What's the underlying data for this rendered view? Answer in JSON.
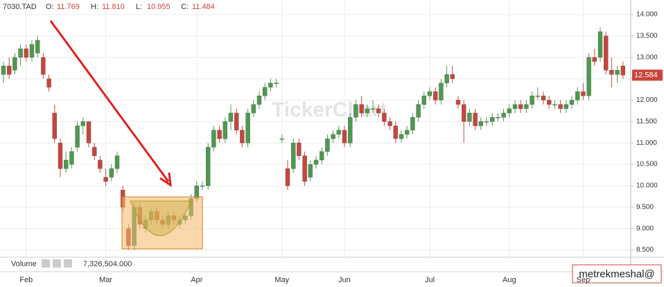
{
  "chart_data": {
    "type": "candlestick",
    "symbol": "7030.TAD",
    "ohlc_legend": [
      {
        "label": "O:",
        "value": "11.769"
      },
      {
        "label": "H:",
        "value": "11.810"
      },
      {
        "label": "L:",
        "value": "10.955"
      },
      {
        "label": "C:",
        "value": "11.484"
      }
    ],
    "volume_label": "Volume",
    "volume_value": "7,326,504.000",
    "watermark": "TickerChart",
    "annotation": "metrekmeshal@",
    "up_color": "#4e9a4e",
    "down_color": "#c9453c",
    "ylim": [
      8.38,
      14.21
    ],
    "yticks": [
      {
        "value": 8.5,
        "label": "8.500"
      },
      {
        "value": 9,
        "label": "9.000"
      },
      {
        "value": 9.5,
        "label": "9.500"
      },
      {
        "value": 10,
        "label": "10.000"
      },
      {
        "value": 10.5,
        "label": "10.500"
      },
      {
        "value": 11,
        "label": "11.000"
      },
      {
        "value": 11.5,
        "label": "11.500"
      },
      {
        "value": 12,
        "label": "12.000"
      },
      {
        "value": 12.5,
        "label": "12.500"
      },
      {
        "value": 13,
        "label": "13.000"
      },
      {
        "value": 13.5,
        "label": "13.500"
      },
      {
        "value": 14,
        "label": "14.000"
      }
    ],
    "grid": true,
    "categories": [
      null,
      null,
      null,
      null,
      "Feb",
      null,
      null,
      null,
      null,
      null,
      null,
      null,
      null,
      null,
      null,
      null,
      null,
      null,
      "Mar",
      null,
      null,
      null,
      null,
      null,
      null,
      null,
      null,
      null,
      null,
      null,
      null,
      null,
      null,
      null,
      "Apr",
      null,
      null,
      null,
      null,
      null,
      null,
      null,
      null,
      null,
      null,
      null,
      null,
      null,
      null,
      "May",
      null,
      null,
      null,
      null,
      null,
      null,
      null,
      null,
      null,
      null,
      "Jun",
      null,
      null,
      null,
      null,
      null,
      null,
      null,
      null,
      null,
      null,
      null,
      null,
      null,
      null,
      "Jul",
      null,
      null,
      null,
      null,
      null,
      null,
      null,
      null,
      null,
      null,
      null,
      null,
      null,
      "Aug",
      null,
      null,
      null,
      null,
      null,
      null,
      null,
      null,
      null,
      null,
      null,
      null,
      "Sep",
      null,
      null,
      null,
      null,
      null,
      null,
      null
    ],
    "open": [
      12.6,
      12.8,
      12.7,
      13.0,
      13.2,
      13.0,
      13.1,
      13.0,
      12.5,
      11.7,
      11.0,
      10.4,
      10.5,
      10.9,
      11.4,
      11.5,
      10.9,
      10.6,
      10.2,
      10.2,
      10.4,
      9.9,
      9.0,
      8.6,
      9.5,
      9.0,
      9.2,
      9.4,
      9.2,
      9.1,
      9.3,
      9.1,
      9.2,
      9.3,
      9.7,
      10.0,
      10.0,
      10.9,
      11.3,
      11.1,
      11.5,
      11.7,
      11.3,
      11.0,
      11.7,
      11.9,
      12.1,
      12.3,
      12.4,
      11.1,
      10.4,
      10.4,
      11.0,
      10.7,
      10.2,
      10.5,
      10.6,
      10.8,
      11.1,
      11.2,
      11.3,
      11.0,
      11.6,
      11.9,
      11.7,
      11.8,
      11.8,
      11.7,
      11.5,
      11.4,
      11.1,
      11.2,
      11.3,
      11.6,
      11.9,
      12.1,
      12.2,
      12.0,
      12.4,
      12.6,
      12.0,
      11.9,
      11.5,
      11.7,
      11.4,
      11.5,
      11.5,
      11.6,
      11.6,
      11.7,
      11.8,
      11.9,
      11.8,
      11.9,
      12.1,
      12.1,
      12.0,
      11.9,
      11.9,
      11.8,
      11.9,
      12.0,
      12.2,
      12.1,
      13.0,
      13.0,
      13.5,
      12.7,
      12.6,
      12.8
    ],
    "high": [
      12.9,
      13.0,
      13.1,
      13.3,
      13.3,
      13.4,
      13.5,
      13.1,
      12.6,
      11.9,
      11.1,
      10.8,
      10.9,
      11.5,
      11.6,
      11.5,
      11.0,
      10.7,
      10.4,
      10.5,
      10.8,
      10.0,
      9.1,
      9.6,
      9.6,
      9.3,
      9.5,
      9.5,
      9.3,
      9.4,
      9.4,
      9.3,
      9.4,
      9.8,
      10.1,
      10.1,
      11.0,
      11.4,
      11.4,
      11.6,
      11.9,
      11.8,
      11.4,
      11.8,
      12.0,
      12.2,
      12.4,
      12.5,
      12.5,
      11.2,
      10.6,
      11.1,
      11.1,
      10.8,
      10.6,
      10.7,
      10.9,
      11.2,
      11.3,
      11.4,
      11.4,
      11.7,
      12.0,
      12.1,
      11.9,
      12.0,
      11.9,
      11.8,
      11.6,
      11.5,
      11.3,
      11.4,
      11.7,
      12.0,
      12.2,
      12.3,
      12.3,
      12.5,
      12.8,
      12.8,
      12.1,
      12.0,
      11.8,
      11.8,
      11.6,
      11.6,
      11.7,
      11.7,
      11.8,
      11.9,
      12.0,
      12.0,
      12.0,
      12.2,
      12.3,
      12.2,
      12.1,
      12.0,
      12.0,
      12.0,
      12.1,
      12.3,
      12.4,
      13.1,
      13.2,
      13.7,
      13.6,
      13.0,
      12.8,
      12.9
    ],
    "low": [
      12.4,
      12.5,
      12.6,
      12.8,
      12.9,
      12.9,
      13.0,
      12.5,
      12.2,
      11.0,
      10.2,
      10.3,
      10.4,
      10.8,
      11.2,
      10.9,
      10.6,
      10.3,
      10.0,
      10.1,
      10.3,
      9.4,
      8.5,
      8.5,
      9.0,
      8.9,
      9.1,
      9.1,
      9.0,
      9.0,
      9.1,
      9.0,
      9.1,
      9.2,
      9.6,
      9.9,
      9.9,
      10.8,
      11.0,
      11.0,
      11.3,
      11.2,
      10.9,
      10.9,
      11.6,
      11.8,
      12.0,
      12.2,
      12.3,
      11.0,
      9.9,
      10.3,
      10.6,
      10.0,
      10.1,
      10.4,
      10.5,
      10.7,
      11.0,
      11.1,
      10.9,
      10.9,
      11.5,
      11.6,
      11.6,
      11.7,
      11.6,
      11.4,
      11.3,
      11.0,
      11.0,
      11.1,
      11.2,
      11.5,
      11.8,
      12.0,
      11.9,
      11.9,
      12.3,
      12.4,
      11.8,
      11.0,
      11.4,
      11.3,
      11.3,
      11.4,
      11.4,
      11.5,
      11.5,
      11.6,
      11.7,
      11.7,
      11.7,
      11.8,
      12.0,
      11.9,
      11.8,
      11.8,
      11.7,
      11.7,
      11.8,
      11.9,
      12.0,
      12.0,
      12.8,
      12.9,
      12.6,
      12.3,
      12.4,
      12.5
    ],
    "close": [
      12.8,
      12.6,
      13.0,
      13.2,
      13.0,
      13.3,
      13.4,
      12.6,
      12.3,
      11.1,
      10.4,
      10.6,
      10.8,
      11.4,
      11.5,
      11.0,
      10.7,
      10.4,
      10.1,
      10.4,
      10.7,
      9.5,
      8.6,
      9.5,
      9.1,
      9.2,
      9.4,
      9.2,
      9.1,
      9.3,
      9.2,
      9.2,
      9.3,
      9.7,
      10.0,
      10.0,
      10.9,
      11.3,
      11.1,
      11.5,
      11.7,
      11.3,
      11.0,
      11.7,
      11.9,
      12.1,
      12.3,
      12.4,
      12.4,
      11.1,
      10.0,
      11.0,
      10.7,
      10.1,
      10.5,
      10.6,
      10.8,
      11.1,
      11.2,
      11.3,
      11.0,
      11.6,
      11.9,
      11.7,
      11.8,
      11.8,
      11.7,
      11.5,
      11.4,
      11.1,
      11.2,
      11.3,
      11.6,
      11.9,
      12.1,
      12.2,
      12.0,
      12.4,
      12.6,
      12.5,
      11.9,
      11.5,
      11.7,
      11.4,
      11.5,
      11.5,
      11.6,
      11.6,
      11.7,
      11.8,
      11.9,
      11.8,
      11.9,
      12.1,
      12.1,
      12.0,
      11.9,
      11.9,
      11.8,
      11.9,
      12.0,
      12.2,
      12.1,
      13.0,
      12.9,
      13.6,
      12.7,
      12.6,
      12.7,
      12.584
    ]
  }
}
